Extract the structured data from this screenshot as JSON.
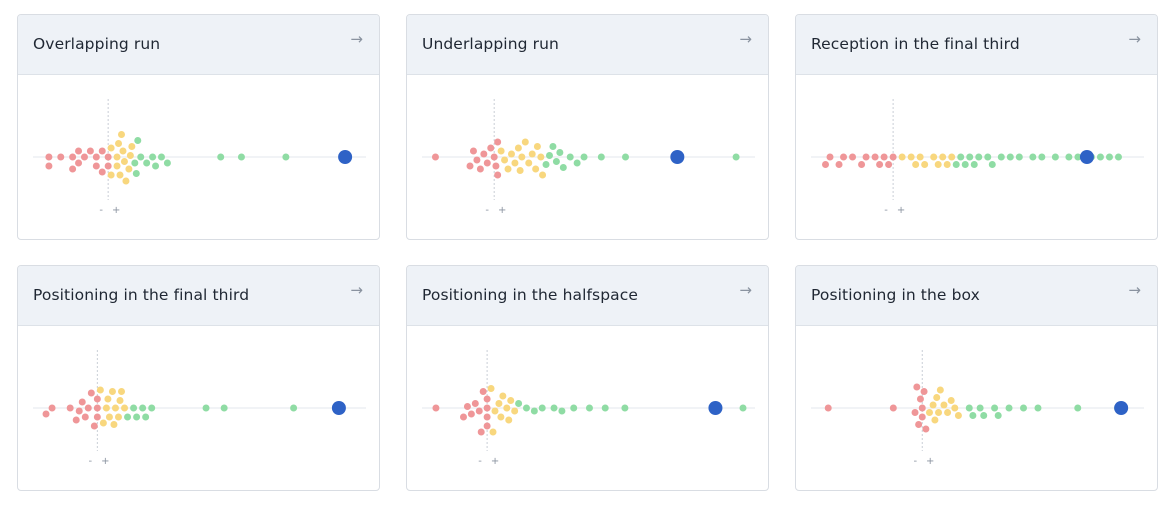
{
  "colors": {
    "negative": "#ef9698",
    "neutral": "#f8d77e",
    "positive": "#8fdca4",
    "player": "#2e62c6",
    "axis_line": "#e3e7ec",
    "zero_line": "#c9ced6"
  },
  "arrow_icon": "arrow-right-icon",
  "sign_labels": {
    "minus": "-",
    "plus": "+"
  },
  "chart_data": [
    {
      "type": "scatter",
      "title": "Overlapping run",
      "x_range": [
        -2.2,
        8.3
      ],
      "player_value": 8.0,
      "negative_values": [
        -2.0,
        -2.0,
        -1.6,
        -1.2,
        -1.2,
        -1.0,
        -1.0,
        -0.8,
        -0.6,
        -0.4,
        -0.4,
        -0.2,
        -0.2,
        0.0,
        0.0
      ],
      "neutral_values": [
        0.1,
        0.1,
        0.3,
        0.3,
        0.35,
        0.4,
        0.45,
        0.5,
        0.55,
        0.6,
        0.7,
        0.75,
        0.8
      ],
      "positive_values": [
        0.9,
        0.95,
        1.0,
        1.1,
        1.3,
        1.5,
        1.6,
        1.8,
        2.0,
        3.8,
        4.5,
        6.0
      ]
    },
    {
      "type": "scatter",
      "title": "Underlapping run",
      "x_range": [
        -1.8,
        7.2
      ],
      "player_value": 5.3,
      "negative_values": [
        -1.7,
        -0.7,
        -0.6,
        -0.5,
        -0.4,
        -0.3,
        -0.2,
        -0.1,
        0.0,
        0.05,
        0.1,
        0.1
      ],
      "neutral_values": [
        0.2,
        0.3,
        0.4,
        0.5,
        0.6,
        0.7,
        0.75,
        0.8,
        0.9,
        1.0,
        1.1,
        1.2,
        1.25,
        1.35,
        1.4
      ],
      "positive_values": [
        1.5,
        1.6,
        1.7,
        1.8,
        1.9,
        2.0,
        2.2,
        2.4,
        2.6,
        3.1,
        3.8,
        7.0
      ]
    },
    {
      "type": "scatter",
      "title": "Reception in the final third",
      "x_range": [
        -1.6,
        5.3
      ],
      "player_value": 4.3,
      "negative_values": [
        -1.5,
        -1.4,
        -1.2,
        -1.1,
        -0.9,
        -0.7,
        -0.6,
        -0.4,
        -0.3,
        -0.2,
        -0.1,
        0.0
      ],
      "neutral_values": [
        0.2,
        0.4,
        0.5,
        0.6,
        0.7,
        0.9,
        1.0,
        1.1,
        1.2,
        1.3
      ],
      "positive_values": [
        1.4,
        1.5,
        1.6,
        1.7,
        1.8,
        1.9,
        2.1,
        2.2,
        2.4,
        2.6,
        2.8,
        3.1,
        3.3,
        3.6,
        3.9,
        4.1,
        4.4,
        4.6,
        4.8,
        5.0
      ]
    },
    {
      "type": "scatter",
      "title": "Positioning in the final third",
      "x_range": [
        -1.8,
        8.5
      ],
      "player_value": 8.0,
      "negative_values": [
        -1.7,
        -1.5,
        -0.9,
        -0.7,
        -0.6,
        -0.5,
        -0.4,
        -0.3,
        -0.2,
        -0.1,
        0.0,
        0.0,
        0.0
      ],
      "neutral_values": [
        0.1,
        0.2,
        0.3,
        0.35,
        0.4,
        0.5,
        0.55,
        0.6,
        0.7,
        0.75,
        0.8,
        0.9
      ],
      "positive_values": [
        1.0,
        1.2,
        1.3,
        1.5,
        1.6,
        1.8,
        3.6,
        4.2,
        6.5
      ]
    },
    {
      "type": "scatter",
      "title": "Positioning in the halfspace",
      "x_range": [
        -1.4,
        6.5
      ],
      "player_value": 5.8,
      "negative_values": [
        -1.3,
        -0.6,
        -0.5,
        -0.4,
        -0.3,
        -0.2,
        -0.15,
        -0.1,
        0.0,
        0.0,
        0.0,
        0.0
      ],
      "neutral_values": [
        0.1,
        0.15,
        0.2,
        0.3,
        0.35,
        0.4,
        0.5,
        0.55,
        0.6,
        0.7
      ],
      "positive_values": [
        0.8,
        1.0,
        1.2,
        1.4,
        1.7,
        1.9,
        2.2,
        2.6,
        3.0,
        3.5,
        6.5
      ]
    },
    {
      "type": "scatter",
      "title": "Positioning in the box",
      "x_range": [
        -2.8,
        5.8
      ],
      "player_value": 5.5,
      "negative_values": [
        -2.6,
        -0.8,
        -0.2,
        -0.15,
        -0.1,
        -0.05,
        0.0,
        0.0,
        0.05,
        0.1
      ],
      "neutral_values": [
        0.2,
        0.3,
        0.35,
        0.4,
        0.45,
        0.5,
        0.6,
        0.7,
        0.8,
        0.9,
        1.0
      ],
      "positive_values": [
        1.3,
        1.4,
        1.6,
        1.7,
        2.0,
        2.1,
        2.4,
        2.8,
        3.2,
        4.3,
        5.4
      ]
    }
  ]
}
